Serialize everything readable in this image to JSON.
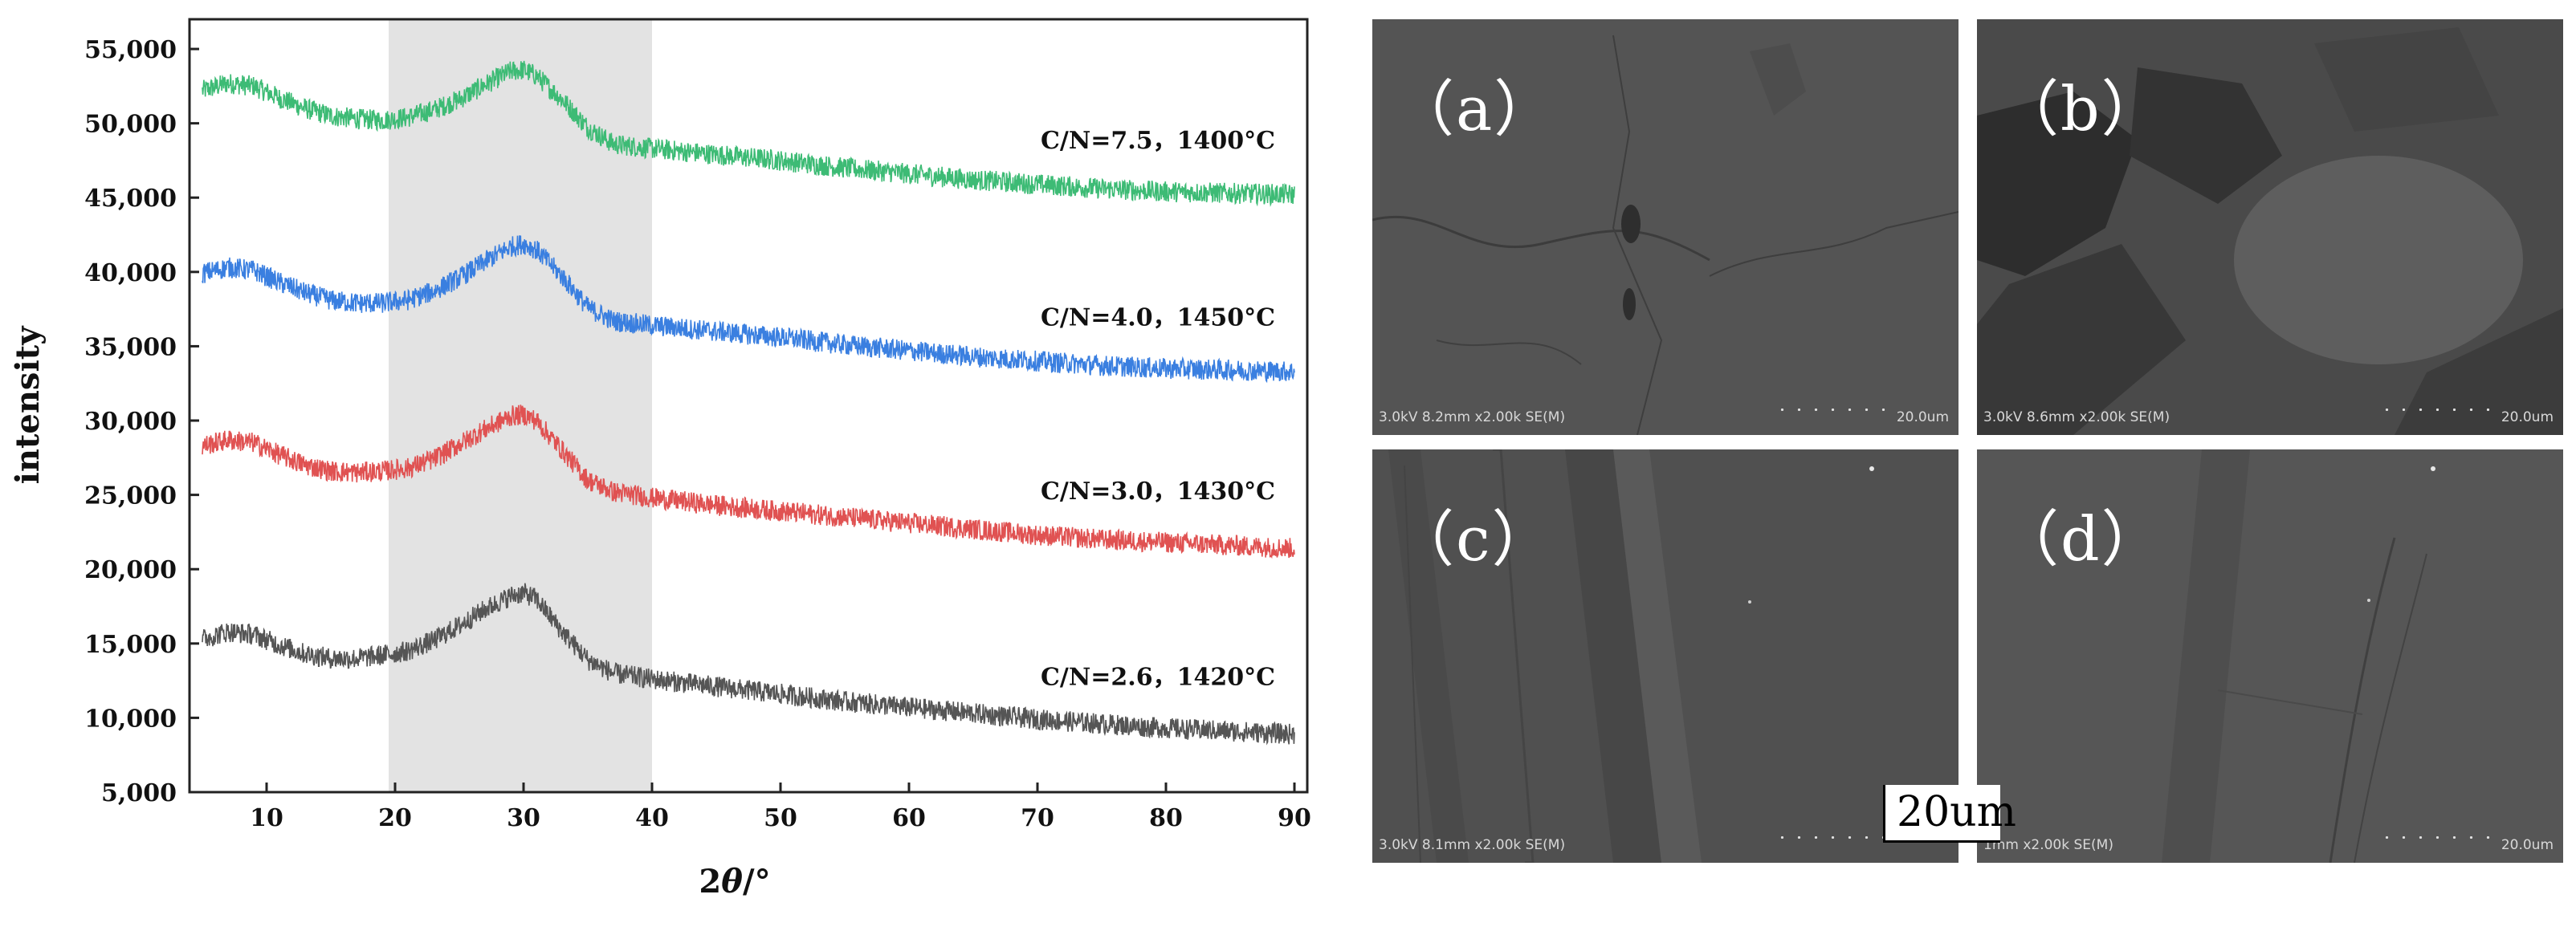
{
  "chart_data": {
    "type": "line",
    "title": "",
    "xlabel": "2θ/°",
    "ylabel": "intensity",
    "xlim": [
      4,
      91
    ],
    "ylim": [
      5000,
      57000
    ],
    "x_ticks": [
      10,
      20,
      30,
      40,
      50,
      60,
      70,
      80,
      90
    ],
    "y_ticks": [
      5000,
      10000,
      15000,
      20000,
      25000,
      30000,
      35000,
      40000,
      45000,
      50000,
      55000
    ],
    "y_tick_labels": [
      "5,000",
      "10,000",
      "15,000",
      "20,000",
      "25,000",
      "30,000",
      "35,000",
      "40,000",
      "45,000",
      "50,000",
      "55,000"
    ],
    "highlight_band": [
      19.5,
      40
    ],
    "series": [
      {
        "name": "C/N=7.5，1400°C",
        "color": "#3dbb75",
        "x": [
          5,
          7,
          9,
          11,
          13,
          15,
          17,
          19,
          21,
          23,
          25,
          27,
          29,
          30,
          31,
          33,
          35,
          37,
          40,
          45,
          50,
          55,
          60,
          65,
          70,
          75,
          80,
          85,
          90
        ],
        "values": [
          52200,
          52700,
          52500,
          51700,
          51000,
          50500,
          50300,
          50200,
          50400,
          50900,
          51600,
          52600,
          53500,
          53600,
          53200,
          51600,
          49700,
          48600,
          48300,
          47900,
          47500,
          47000,
          46600,
          46200,
          45900,
          45600,
          45400,
          45300,
          45200
        ]
      },
      {
        "name": "C/N=4.0，1450°C",
        "color": "#3a7fe0",
        "x": [
          5,
          7,
          9,
          11,
          13,
          15,
          17,
          19,
          21,
          23,
          25,
          27,
          29,
          30,
          31,
          33,
          35,
          37,
          40,
          45,
          50,
          55,
          60,
          65,
          70,
          75,
          80,
          85,
          90
        ],
        "values": [
          39900,
          40300,
          40100,
          39300,
          38600,
          38100,
          37900,
          37900,
          38100,
          38700,
          39600,
          40700,
          41700,
          41900,
          41500,
          39700,
          37600,
          36700,
          36400,
          36000,
          35600,
          35100,
          34700,
          34300,
          34000,
          33700,
          33500,
          33400,
          33300
        ]
      },
      {
        "name": "C/N=3.0，1430°C",
        "color": "#e05252",
        "x": [
          5,
          7,
          9,
          11,
          13,
          15,
          17,
          19,
          21,
          23,
          25,
          27,
          29,
          30,
          31,
          33,
          35,
          37,
          40,
          45,
          50,
          55,
          60,
          65,
          70,
          75,
          80,
          85,
          90
        ],
        "values": [
          28300,
          28700,
          28500,
          27700,
          27000,
          26600,
          26500,
          26600,
          26800,
          27400,
          28400,
          29400,
          30300,
          30400,
          30000,
          28000,
          26000,
          25200,
          24800,
          24300,
          23900,
          23500,
          23100,
          22700,
          22300,
          22000,
          21800,
          21600,
          21400
        ]
      },
      {
        "name": "C/N=2.6，1420°C",
        "color": "#555555",
        "x": [
          5,
          7,
          9,
          11,
          13,
          15,
          17,
          19,
          21,
          23,
          25,
          27,
          29,
          30,
          31,
          33,
          35,
          37,
          40,
          45,
          50,
          55,
          60,
          65,
          70,
          75,
          80,
          85,
          90
        ],
        "values": [
          15300,
          15800,
          15600,
          14900,
          14300,
          14000,
          14000,
          14200,
          14500,
          15200,
          16200,
          17300,
          18200,
          18400,
          18000,
          15800,
          13900,
          13000,
          12600,
          12100,
          11600,
          11100,
          10700,
          10300,
          9900,
          9600,
          9300,
          9100,
          8900
        ]
      }
    ],
    "annotations": [
      "C/N=7.5，1400°C",
      "C/N=4.0，1450°C",
      "C/N=3.0，1430°C",
      "C/N=2.6，1420°C"
    ]
  },
  "sem_panels": [
    {
      "letter": "（a）",
      "info": "3.0kV 8.2mm x2.00k SE(M)",
      "scale": "20.0um"
    },
    {
      "letter": "（b）",
      "info": "3.0kV 8.6mm x2.00k SE(M)",
      "scale": "20.0um"
    },
    {
      "letter": "（c）",
      "info": "3.0kV 8.1mm x2.00k SE(M)",
      "scale": ""
    },
    {
      "letter": "（d）",
      "info": "1mm x2.00k SE(M)",
      "scale": "20.0um"
    }
  ],
  "scale_bar": {
    "label": "20um"
  }
}
